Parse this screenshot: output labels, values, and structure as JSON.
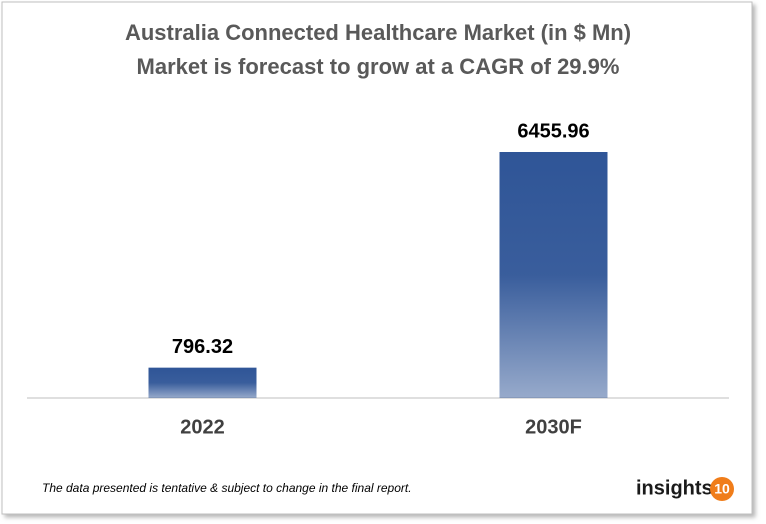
{
  "chart_data": {
    "type": "bar",
    "title": "Australia Connected Healthcare Market (in $ Mn)",
    "subtitle": "Market is forecast to grow at a CAGR of 29.9%",
    "categories": [
      "2022",
      "2030F"
    ],
    "values": [
      796.32,
      6455.96
    ],
    "color": "#2f5597"
  },
  "footnote": "The data presented is tentative & subject to change in the final report.",
  "logo": {
    "text": "insights",
    "badge": "10"
  }
}
